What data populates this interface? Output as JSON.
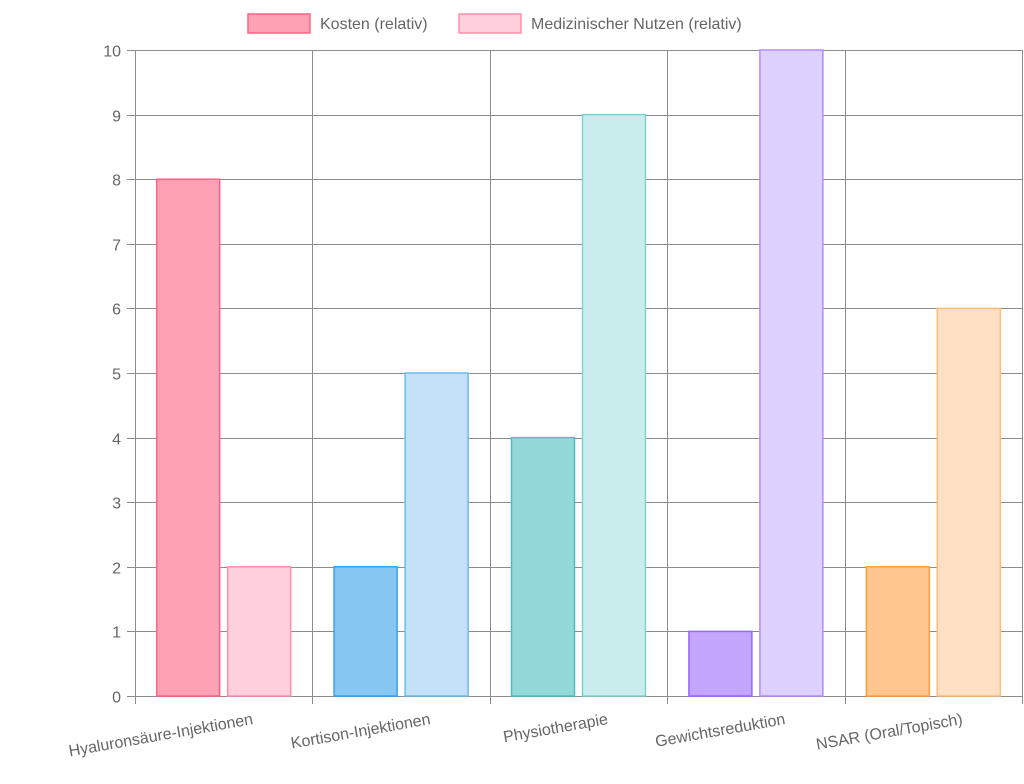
{
  "chart_data": {
    "type": "bar",
    "categories": [
      "Hyaluronsäure-Injektionen",
      "Kortison-Injektionen",
      "Physiotherapie",
      "Gewichtsreduktion",
      "NSAR (Oral/Topisch)"
    ],
    "series": [
      {
        "name": "Kosten (relativ)",
        "values": [
          8,
          2,
          4,
          1,
          2
        ]
      },
      {
        "name": "Medizinischer Nutzen (relativ)",
        "values": [
          2,
          5,
          9,
          10,
          6
        ]
      }
    ],
    "legend": {
      "position": "top",
      "labels": [
        "Kosten (relativ)",
        "Medizinischer Nutzen (relativ)"
      ],
      "swatch_fill": [
        "#ffa1b5",
        "#ffd0dc"
      ],
      "swatch_border": [
        "#ff6384",
        "#ff8fa9"
      ]
    },
    "colors": {
      "series_0_fill": [
        "#ffa1b5",
        "#86c7f3",
        "#93d9d9",
        "#c4a6ff",
        "#ffc78f"
      ],
      "series_0_border": [
        "#ff6384",
        "#36a2eb",
        "#4bc0c0",
        "#9966ff",
        "#ff9f40"
      ],
      "series_1_fill": [
        "#ffd0dc",
        "#c3e2f9",
        "#c9ecec",
        "#ded0ff",
        "#ffe0c4"
      ],
      "series_1_border": [
        "#ff8fa9",
        "#6bbaf0",
        "#7fd2d2",
        "#b38cff",
        "#ffbd7a"
      ],
      "grid": "#8c8c8c",
      "text": "#666666"
    },
    "ylim": [
      0,
      10
    ],
    "yticks": [
      0,
      1,
      2,
      3,
      4,
      5,
      6,
      7,
      8,
      9,
      10
    ],
    "grid": true,
    "title": "",
    "xlabel": "",
    "ylabel": ""
  }
}
